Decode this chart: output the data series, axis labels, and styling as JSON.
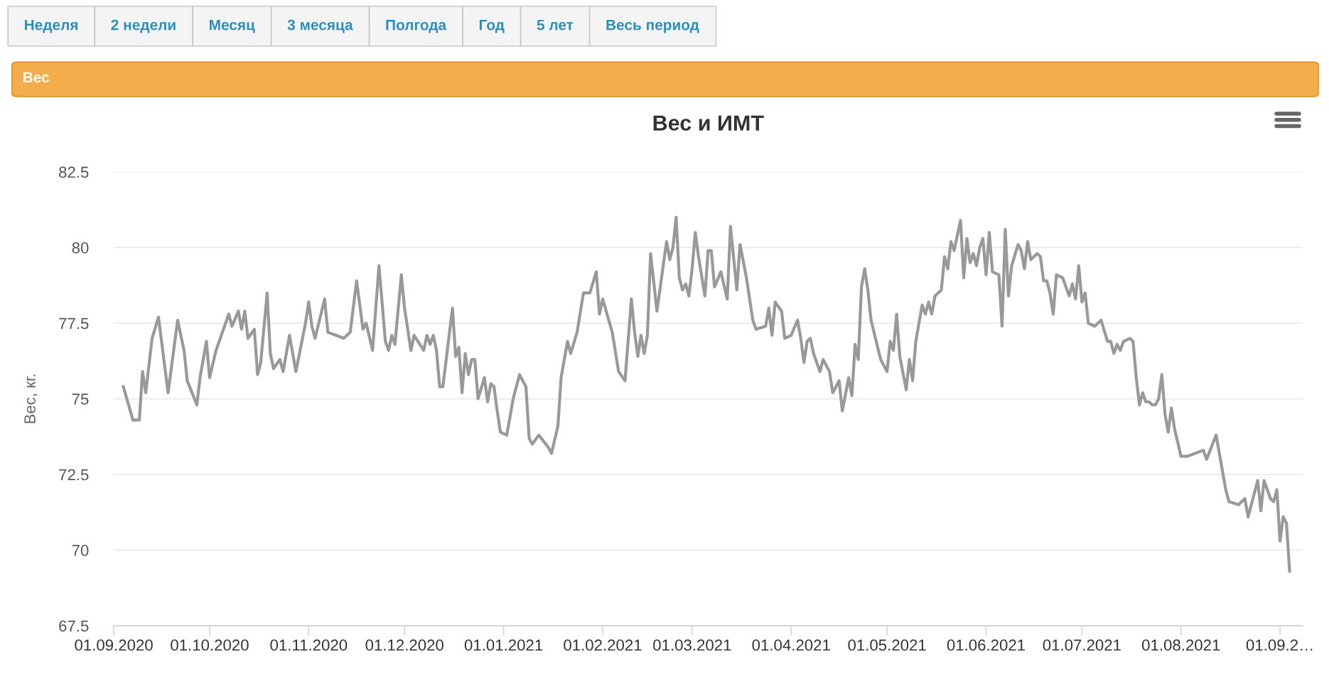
{
  "chart_data": {
    "type": "line",
    "title": "Вес и ИМТ",
    "ylabel": "Вес, кг.",
    "annotations": [
      "Неделя",
      "2 недели",
      "Месяц",
      "3 месяца",
      "Полгода",
      "Год",
      "5 лет",
      "Весь период",
      "Вес"
    ],
    "xlim": [
      "2020-09-01",
      "2021-09-08"
    ],
    "xticks": [
      {
        "value": "2020-09-01",
        "label": "01.09.2020"
      },
      {
        "value": "2020-10-01",
        "label": "01.10.2020"
      },
      {
        "value": "2020-11-01",
        "label": "01.11.2020"
      },
      {
        "value": "2020-12-01",
        "label": "01.12.2020"
      },
      {
        "value": "2021-01-01",
        "label": "01.01.2021"
      },
      {
        "value": "2021-02-01",
        "label": "01.02.2021"
      },
      {
        "value": "2021-03-01",
        "label": "01.03.2021"
      },
      {
        "value": "2021-04-01",
        "label": "01.04.2021"
      },
      {
        "value": "2021-05-01",
        "label": "01.05.2021"
      },
      {
        "value": "2021-06-01",
        "label": "01.06.2021"
      },
      {
        "value": "2021-07-01",
        "label": "01.07.2021"
      },
      {
        "value": "2021-08-01",
        "label": "01.08.2021"
      },
      {
        "value": "2021-09-01",
        "label": "01.09.2…"
      }
    ],
    "ylim": [
      67.5,
      82.5
    ],
    "yticks": [
      67.5,
      70,
      72.5,
      75,
      77.5,
      80,
      82.5
    ],
    "grid": "y",
    "legend": false,
    "marker": "none",
    "line_style": "solid",
    "series": [
      {
        "color": "#999999",
        "x": [
          "2020-09-04",
          "2020-09-07",
          "2020-09-09",
          "2020-09-10",
          "2020-09-11",
          "2020-09-13",
          "2020-09-15",
          "2020-09-18",
          "2020-09-20",
          "2020-09-21",
          "2020-09-23",
          "2020-09-24",
          "2020-09-27",
          "2020-09-28",
          "2020-09-30",
          "2020-10-01",
          "2020-10-03",
          "2020-10-07",
          "2020-10-08",
          "2020-10-10",
          "2020-10-11",
          "2020-10-12",
          "2020-10-13",
          "2020-10-15",
          "2020-10-16",
          "2020-10-17",
          "2020-10-19",
          "2020-10-20",
          "2020-10-21",
          "2020-10-23",
          "2020-10-24",
          "2020-10-26",
          "2020-10-28",
          "2020-10-31",
          "2020-11-01",
          "2020-11-02",
          "2020-11-03",
          "2020-11-06",
          "2020-11-07",
          "2020-11-12",
          "2020-11-14",
          "2020-11-16",
          "2020-11-18",
          "2020-11-19",
          "2020-11-21",
          "2020-11-23",
          "2020-11-25",
          "2020-11-26",
          "2020-11-27",
          "2020-11-28",
          "2020-11-30",
          "2020-12-01",
          "2020-12-03",
          "2020-12-04",
          "2020-12-07",
          "2020-12-08",
          "2020-12-09",
          "2020-12-10",
          "2020-12-11",
          "2020-12-12",
          "2020-12-13",
          "2020-12-16",
          "2020-12-17",
          "2020-12-18",
          "2020-12-19",
          "2020-12-20",
          "2020-12-21",
          "2020-12-22",
          "2020-12-23",
          "2020-12-24",
          "2020-12-26",
          "2020-12-27",
          "2020-12-28",
          "2020-12-29",
          "2020-12-30",
          "2020-12-31",
          "2021-01-02",
          "2021-01-04",
          "2021-01-06",
          "2021-01-08",
          "2021-01-09",
          "2021-01-10",
          "2021-01-12",
          "2021-01-15",
          "2021-01-16",
          "2021-01-18",
          "2021-01-19",
          "2021-01-21",
          "2021-01-22",
          "2021-01-24",
          "2021-01-26",
          "2021-01-28",
          "2021-01-30",
          "2021-01-31",
          "2021-02-01",
          "2021-02-04",
          "2021-02-06",
          "2021-02-08",
          "2021-02-10",
          "2021-02-11",
          "2021-02-12",
          "2021-02-13",
          "2021-02-14",
          "2021-02-15",
          "2021-02-16",
          "2021-02-18",
          "2021-02-21",
          "2021-02-22",
          "2021-02-23",
          "2021-02-24",
          "2021-02-25",
          "2021-02-26",
          "2021-02-27",
          "2021-02-28",
          "2021-03-01",
          "2021-03-02",
          "2021-03-03",
          "2021-03-05",
          "2021-03-06",
          "2021-03-07",
          "2021-03-08",
          "2021-03-10",
          "2021-03-12",
          "2021-03-13",
          "2021-03-15",
          "2021-03-16",
          "2021-03-18",
          "2021-03-20",
          "2021-03-21",
          "2021-03-24",
          "2021-03-25",
          "2021-03-26",
          "2021-03-27",
          "2021-03-29",
          "2021-03-30",
          "2021-04-01",
          "2021-04-03",
          "2021-04-04",
          "2021-04-05",
          "2021-04-06",
          "2021-04-07",
          "2021-04-08",
          "2021-04-10",
          "2021-04-11",
          "2021-04-13",
          "2021-04-14",
          "2021-04-16",
          "2021-04-17",
          "2021-04-19",
          "2021-04-20",
          "2021-04-21",
          "2021-04-22",
          "2021-04-23",
          "2021-04-24",
          "2021-04-25",
          "2021-04-26",
          "2021-04-29",
          "2021-05-01",
          "2021-05-02",
          "2021-05-03",
          "2021-05-04",
          "2021-05-05",
          "2021-05-07",
          "2021-05-08",
          "2021-05-09",
          "2021-05-10",
          "2021-05-12",
          "2021-05-13",
          "2021-05-14",
          "2021-05-15",
          "2021-05-16",
          "2021-05-18",
          "2021-05-19",
          "2021-05-20",
          "2021-05-21",
          "2021-05-22",
          "2021-05-24",
          "2021-05-25",
          "2021-05-26",
          "2021-05-27",
          "2021-05-28",
          "2021-05-29",
          "2021-05-30",
          "2021-05-31",
          "2021-06-01",
          "2021-06-02",
          "2021-06-03",
          "2021-06-05",
          "2021-06-06",
          "2021-06-07",
          "2021-06-08",
          "2021-06-09",
          "2021-06-11",
          "2021-06-12",
          "2021-06-13",
          "2021-06-14",
          "2021-06-15",
          "2021-06-17",
          "2021-06-18",
          "2021-06-19",
          "2021-06-20",
          "2021-06-21",
          "2021-06-22",
          "2021-06-23",
          "2021-06-25",
          "2021-06-27",
          "2021-06-28",
          "2021-06-29",
          "2021-06-30",
          "2021-07-01",
          "2021-07-02",
          "2021-07-03",
          "2021-07-05",
          "2021-07-07",
          "2021-07-09",
          "2021-07-10",
          "2021-07-11",
          "2021-07-12",
          "2021-07-13",
          "2021-07-14",
          "2021-07-16",
          "2021-07-17",
          "2021-07-18",
          "2021-07-19",
          "2021-07-20",
          "2021-07-21",
          "2021-07-22",
          "2021-07-23",
          "2021-07-24",
          "2021-07-25",
          "2021-07-26",
          "2021-07-27",
          "2021-07-28",
          "2021-07-29",
          "2021-07-30",
          "2021-08-01",
          "2021-08-03",
          "2021-08-08",
          "2021-08-09",
          "2021-08-12",
          "2021-08-13",
          "2021-08-15",
          "2021-08-16",
          "2021-08-19",
          "2021-08-20",
          "2021-08-21",
          "2021-08-22",
          "2021-08-24",
          "2021-08-25",
          "2021-08-26",
          "2021-08-27",
          "2021-08-29",
          "2021-08-30",
          "2021-08-31",
          "2021-09-01",
          "2021-09-02",
          "2021-09-03",
          "2021-09-04"
        ],
        "values": [
          75.4,
          74.3,
          74.3,
          75.9,
          75.2,
          77.0,
          77.7,
          75.2,
          76.8,
          77.6,
          76.6,
          75.6,
          74.8,
          75.7,
          76.9,
          75.7,
          76.6,
          77.8,
          77.4,
          77.9,
          77.3,
          77.9,
          77.0,
          77.3,
          75.8,
          76.2,
          78.5,
          76.5,
          76.0,
          76.3,
          75.9,
          77.1,
          75.9,
          77.5,
          78.2,
          77.4,
          77.0,
          78.3,
          77.2,
          77.0,
          77.2,
          78.9,
          77.3,
          77.5,
          76.6,
          79.4,
          76.9,
          76.6,
          77.1,
          76.8,
          79.1,
          78.0,
          76.6,
          77.1,
          76.6,
          77.1,
          76.8,
          77.1,
          76.6,
          75.4,
          75.4,
          78.0,
          76.4,
          76.7,
          75.2,
          76.5,
          75.8,
          76.3,
          76.3,
          75.0,
          75.7,
          74.9,
          75.5,
          75.4,
          74.6,
          73.9,
          73.8,
          75.0,
          75.8,
          75.4,
          73.7,
          73.5,
          73.8,
          73.4,
          73.2,
          74.1,
          75.7,
          76.9,
          76.5,
          77.2,
          78.5,
          78.5,
          79.2,
          77.8,
          78.3,
          77.2,
          75.9,
          75.6,
          78.3,
          77.2,
          76.4,
          77.1,
          76.5,
          77.1,
          79.8,
          77.9,
          80.2,
          79.6,
          80.0,
          81.0,
          79.0,
          78.6,
          78.8,
          78.4,
          79.3,
          80.5,
          79.7,
          78.4,
          79.9,
          79.9,
          78.7,
          79.2,
          78.3,
          80.7,
          78.6,
          80.1,
          79.0,
          77.6,
          77.3,
          77.4,
          78.0,
          77.1,
          78.2,
          77.9,
          77.0,
          77.1,
          77.6,
          77.0,
          76.2,
          76.9,
          77.0,
          76.5,
          75.9,
          76.3,
          75.9,
          75.2,
          75.6,
          74.6,
          75.7,
          75.1,
          76.8,
          76.3,
          78.7,
          79.3,
          78.6,
          77.6,
          76.3,
          75.9,
          76.9,
          76.6,
          77.8,
          76.4,
          75.3,
          76.3,
          75.6,
          76.9,
          78.1,
          77.8,
          78.2,
          77.8,
          78.4,
          78.6,
          79.7,
          79.3,
          80.2,
          79.9,
          80.9,
          79.0,
          80.3,
          79.5,
          79.8,
          79.4,
          80.0,
          80.3,
          79.1,
          80.5,
          79.2,
          79.1,
          77.4,
          80.6,
          78.4,
          79.4,
          80.1,
          79.9,
          79.3,
          80.2,
          79.6,
          79.8,
          79.7,
          78.9,
          78.9,
          78.5,
          77.8,
          79.1,
          79.0,
          78.4,
          78.8,
          78.3,
          79.4,
          78.2,
          78.5,
          77.5,
          77.4,
          77.6,
          76.9,
          76.9,
          76.5,
          76.8,
          76.6,
          76.9,
          77.0,
          76.9,
          75.7,
          74.8,
          75.2,
          74.9,
          74.9,
          74.8,
          74.8,
          75.0,
          75.8,
          74.5,
          73.9,
          74.7,
          74.0,
          73.1,
          73.1,
          73.3,
          73.0,
          73.8,
          73.2,
          72.0,
          71.6,
          71.5,
          71.6,
          71.7,
          71.1,
          71.9,
          72.3,
          71.3,
          72.3,
          71.7,
          71.6,
          72.0,
          70.3,
          71.1,
          70.9,
          69.3
        ]
      }
    ]
  }
}
